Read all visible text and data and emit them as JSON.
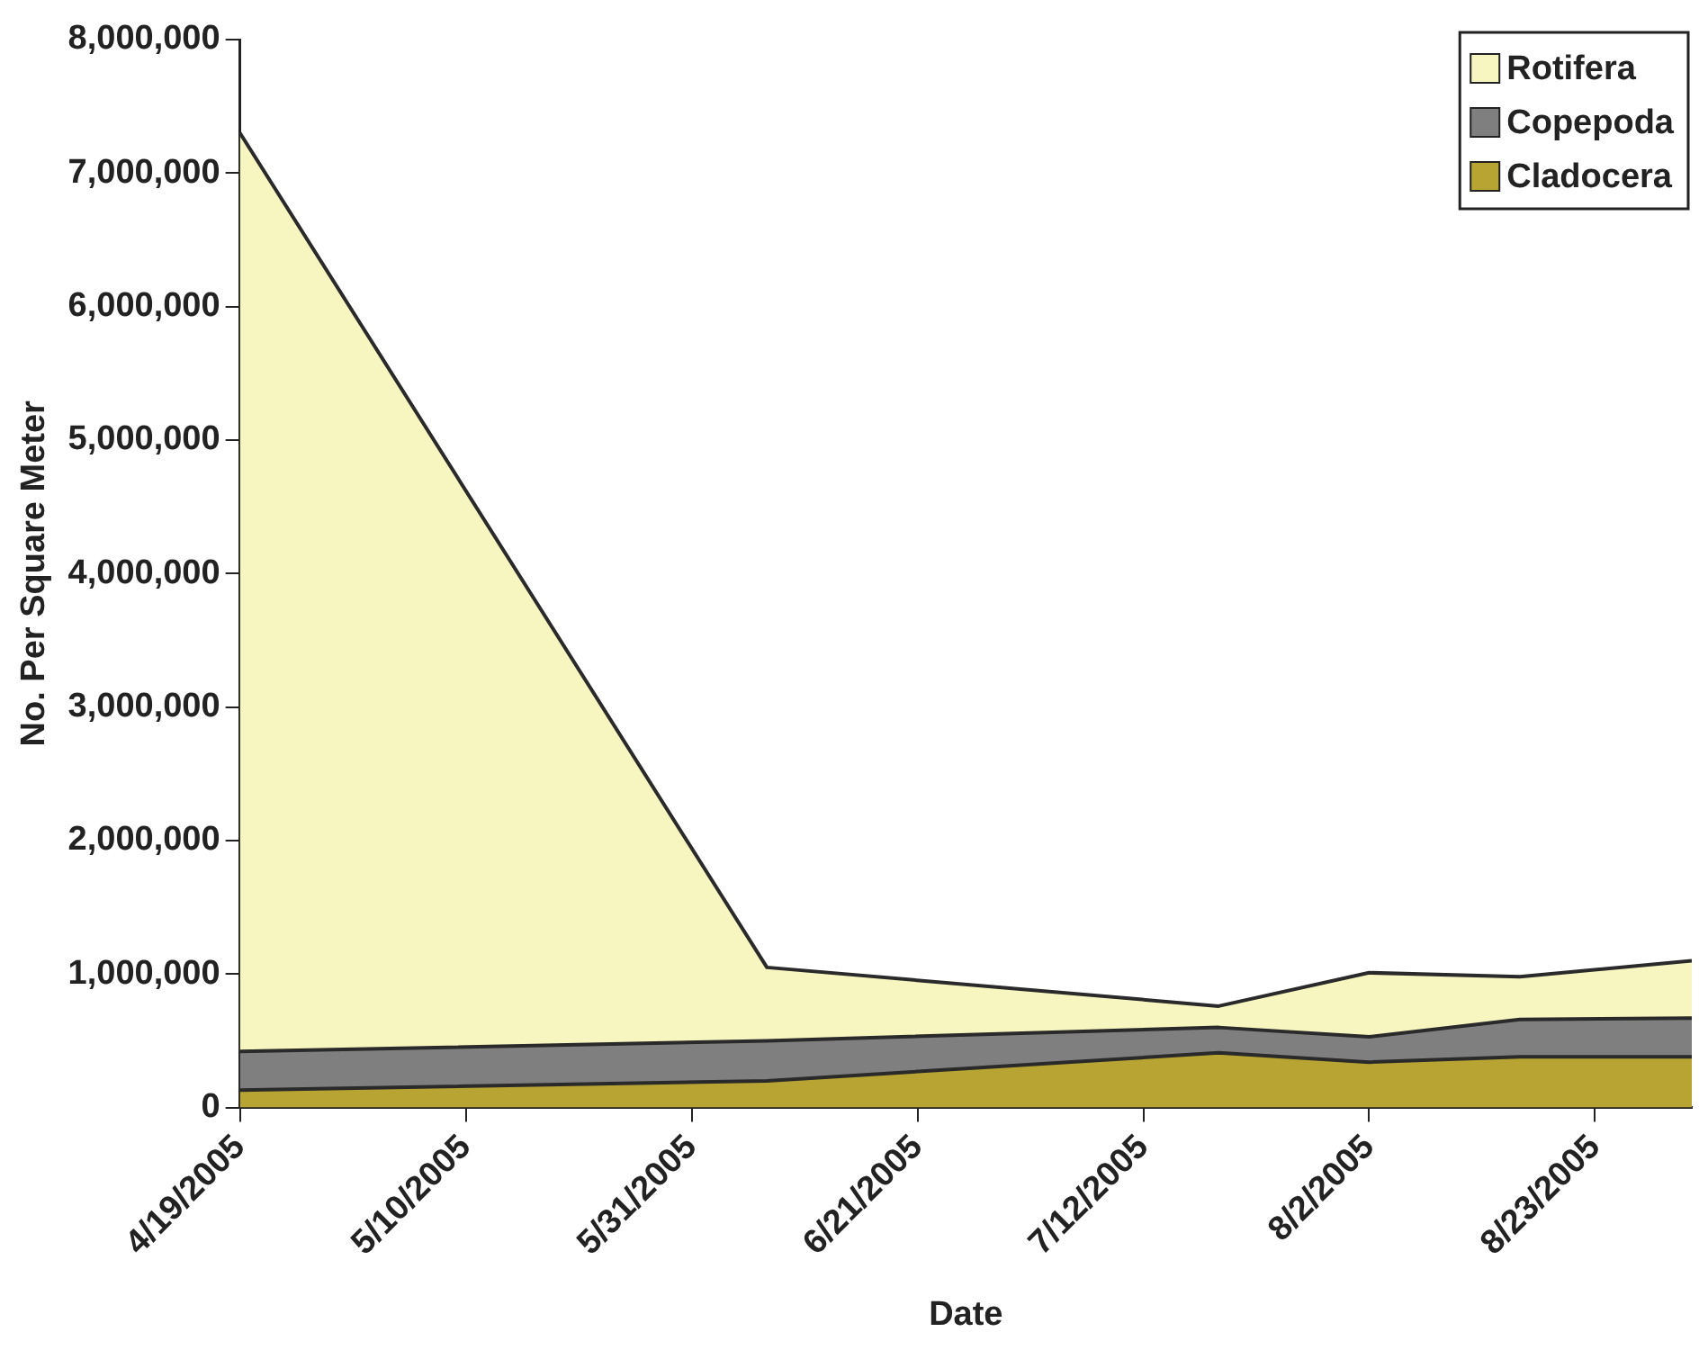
{
  "chart_data": {
    "type": "area",
    "stacked": true,
    "xlabel": "Date",
    "ylabel": "No. Per Square Meter",
    "x": [
      "2005-04-19",
      "2005-06-07",
      "2005-07-19",
      "2005-08-02",
      "2005-08-16",
      "2005-09-01"
    ],
    "series": [
      {
        "name": "Cladocera",
        "color": "#b8a432",
        "values": [
          130000,
          200000,
          410000,
          340000,
          380000,
          380000
        ]
      },
      {
        "name": "Copepoda",
        "color": "#7f7f7f",
        "values": [
          290000,
          300000,
          190000,
          190000,
          280000,
          290000
        ]
      },
      {
        "name": "Rotifera",
        "color": "#f7f5c0",
        "values": [
          6880000,
          550000,
          160000,
          480000,
          320000,
          430000
        ]
      }
    ],
    "xlim": [
      "2005-04-19",
      "2005-09-01"
    ],
    "xticks": [
      {
        "value": "2005-04-19",
        "label": "4/19/2005"
      },
      {
        "value": "2005-05-10",
        "label": "5/10/2005"
      },
      {
        "value": "2005-05-31",
        "label": "5/31/2005"
      },
      {
        "value": "2005-06-21",
        "label": "6/21/2005"
      },
      {
        "value": "2005-07-12",
        "label": "7/12/2005"
      },
      {
        "value": "2005-08-02",
        "label": "8/2/2005"
      },
      {
        "value": "2005-08-23",
        "label": "8/23/2005"
      }
    ],
    "ylim": [
      0,
      8000000
    ],
    "yticks": [
      {
        "value": 0,
        "label": "0"
      },
      {
        "value": 1000000,
        "label": "1,000,000"
      },
      {
        "value": 2000000,
        "label": "2,000,000"
      },
      {
        "value": 3000000,
        "label": "3,000,000"
      },
      {
        "value": 4000000,
        "label": "4,000,000"
      },
      {
        "value": 5000000,
        "label": "5,000,000"
      },
      {
        "value": 6000000,
        "label": "6,000,000"
      },
      {
        "value": 7000000,
        "label": "7,000,000"
      },
      {
        "value": 8000000,
        "label": "8,000,000"
      }
    ],
    "legend": "top right"
  }
}
